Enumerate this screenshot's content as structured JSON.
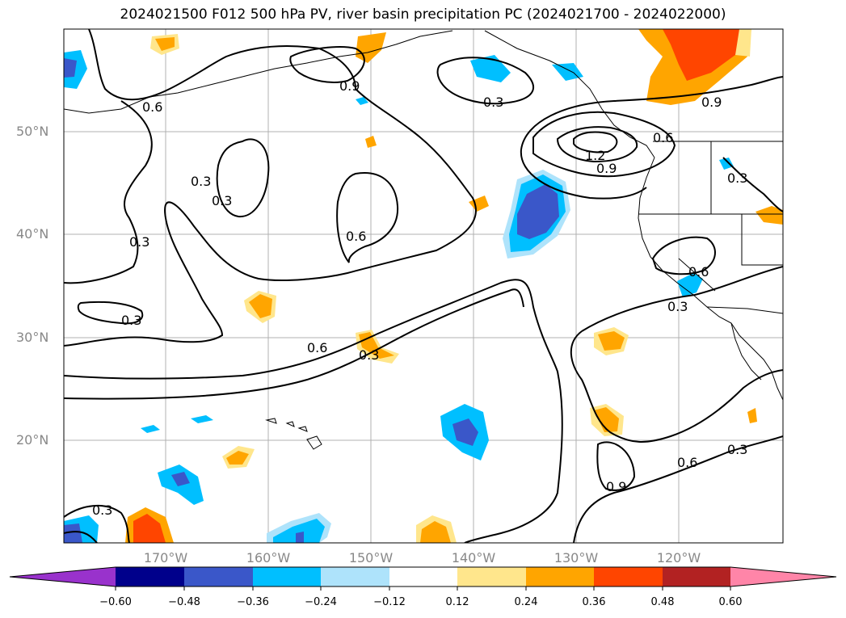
{
  "title": "2024021500 F012 500 hPa PV, river basin precipitation PC (2024021700 - 2024022000)",
  "map": {
    "lat_labels": [
      "50°N",
      "40°N",
      "30°N",
      "20°N"
    ],
    "lon_labels": [
      "170°W",
      "160°W",
      "150°W",
      "140°W",
      "130°W",
      "120°W"
    ],
    "contour_labels": [
      "0.6",
      "0.9",
      "0.3",
      "1.2",
      "0.9",
      "0.6",
      "0.9",
      "0.3",
      "0.3",
      "0.6",
      "0.3",
      "0.6",
      "0.6",
      "0.3",
      "0.3",
      "0.3",
      "0.6",
      "0.3",
      "0.9",
      "0.3",
      "0.3"
    ],
    "colors": {
      "neg_strong": "#3a57c9",
      "neg_mid": "#00bfff",
      "pos_light": "#ffe68c",
      "pos_mid": "#ffa500",
      "pos_strong": "#ff4500",
      "grid": "#b0b0b0"
    }
  },
  "colorbar": {
    "ticks": [
      "−0.60",
      "−0.48",
      "−0.36",
      "−0.24",
      "−0.12",
      "0.12",
      "0.24",
      "0.36",
      "0.48",
      "0.60"
    ],
    "colors": [
      "#9932cc",
      "#00008b",
      "#3a57c9",
      "#00bfff",
      "#aee3fb",
      "#ffffff",
      "#ffe68c",
      "#ffa500",
      "#ff4500",
      "#b22222",
      "#ff85a8"
    ]
  }
}
